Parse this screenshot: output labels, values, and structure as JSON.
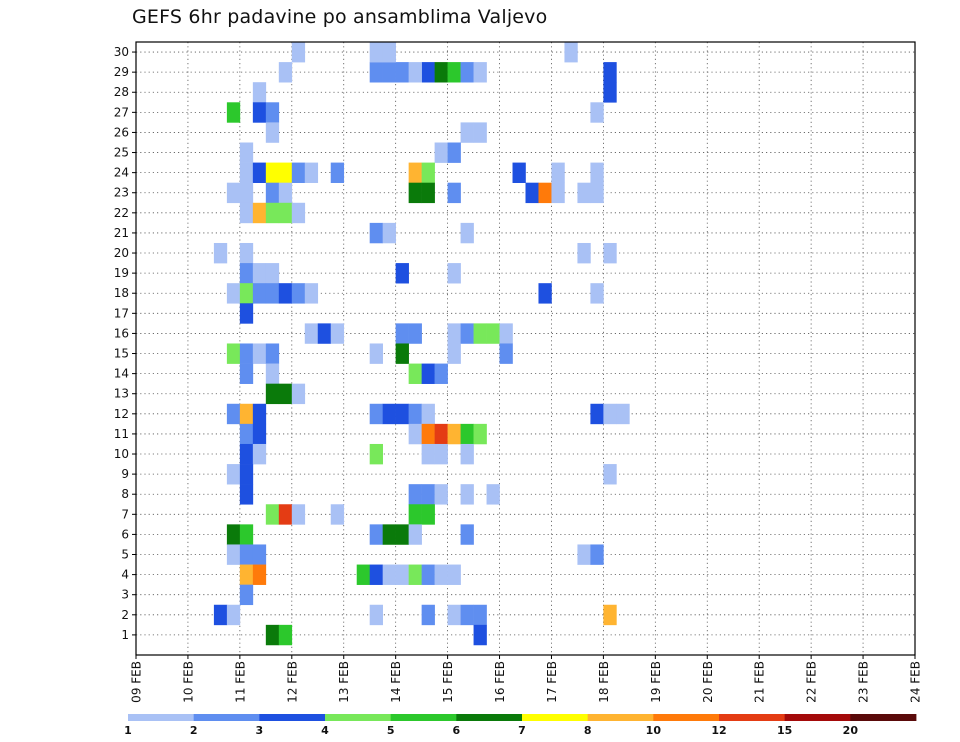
{
  "chart_data": {
    "type": "heatmap",
    "title": "GEFS 6hr padavine po ansamblima Valjevo",
    "x_tick_labels": [
      "09 FEB",
      "10 FEB",
      "11 FEB",
      "12 FEB",
      "13 FEB",
      "14 FEB",
      "15 FEB",
      "16 FEB",
      "17 FEB",
      "18 FEB",
      "19 FEB",
      "20 FEB",
      "21 FEB",
      "22 FEB",
      "23 FEB",
      "24 FEB"
    ],
    "x_range_days": [
      0,
      15
    ],
    "y_range_members": [
      0,
      30
    ],
    "y_ticks": [
      1,
      2,
      3,
      4,
      5,
      6,
      7,
      8,
      9,
      10,
      11,
      12,
      13,
      14,
      15,
      16,
      17,
      18,
      19,
      20,
      21,
      22,
      23,
      24,
      25,
      26,
      27,
      28,
      29,
      30
    ],
    "grid": true,
    "colorbar": {
      "orientation": "horizontal",
      "position": "bottom",
      "labels": [
        "1",
        "2",
        "3",
        "4",
        "5",
        "6",
        "7",
        "8",
        "10",
        "12",
        "15",
        "20"
      ],
      "colors": [
        "#a9c1f5",
        "#5f8ef0",
        "#1e50e0",
        "#78e85a",
        "#2cc82c",
        "#0a7a0a",
        "#ffff00",
        "#ffb431",
        "#ff7a0a",
        "#e43c14",
        "#a40a0a",
        "#5a0a0a"
      ]
    },
    "cells": [
      [
        12,
        30,
        1
      ],
      [
        18,
        29,
        2
      ],
      [
        19,
        29,
        2
      ],
      [
        20,
        29,
        2
      ],
      [
        11,
        29,
        1
      ],
      [
        18,
        30,
        1
      ],
      [
        19,
        30,
        1
      ],
      [
        22,
        29,
        3
      ],
      [
        23,
        29,
        6
      ],
      [
        24,
        29,
        5
      ],
      [
        25,
        29,
        2
      ],
      [
        26,
        29,
        1
      ],
      [
        21,
        29,
        1
      ],
      [
        33,
        30,
        1
      ],
      [
        36,
        29,
        3
      ],
      [
        36,
        28,
        3
      ],
      [
        9,
        28,
        1
      ],
      [
        7,
        27,
        5
      ],
      [
        9,
        27,
        3
      ],
      [
        10,
        27,
        2
      ],
      [
        35,
        27,
        1
      ],
      [
        10,
        26,
        1
      ],
      [
        25,
        26,
        1
      ],
      [
        26,
        26,
        1
      ],
      [
        8,
        25,
        1
      ],
      [
        23,
        25,
        1
      ],
      [
        24,
        25,
        2
      ],
      [
        8,
        24,
        1
      ],
      [
        9,
        24,
        3
      ],
      [
        10,
        24,
        7
      ],
      [
        11,
        24,
        7
      ],
      [
        12,
        24,
        2
      ],
      [
        13,
        24,
        1
      ],
      [
        15,
        24,
        2
      ],
      [
        21,
        24,
        8
      ],
      [
        22,
        24,
        4
      ],
      [
        29,
        24,
        3
      ],
      [
        32,
        24,
        1
      ],
      [
        35,
        24,
        1
      ],
      [
        7,
        23,
        1
      ],
      [
        8,
        23,
        1
      ],
      [
        10,
        23,
        2
      ],
      [
        11,
        23,
        1
      ],
      [
        21,
        23,
        6
      ],
      [
        22,
        23,
        6
      ],
      [
        24,
        23,
        2
      ],
      [
        30,
        23,
        3
      ],
      [
        31,
        23,
        9
      ],
      [
        32,
        23,
        1
      ],
      [
        34,
        23,
        1
      ],
      [
        35,
        23,
        1
      ],
      [
        8,
        22,
        1
      ],
      [
        9,
        22,
        8
      ],
      [
        10,
        22,
        4
      ],
      [
        11,
        22,
        4
      ],
      [
        12,
        22,
        1
      ],
      [
        18,
        21,
        2
      ],
      [
        19,
        21,
        1
      ],
      [
        25,
        21,
        1
      ],
      [
        6,
        20,
        1
      ],
      [
        8,
        20,
        1
      ],
      [
        34,
        20,
        1
      ],
      [
        36,
        20,
        1
      ],
      [
        8,
        19,
        2
      ],
      [
        9,
        19,
        1
      ],
      [
        10,
        19,
        1
      ],
      [
        20,
        19,
        3
      ],
      [
        24,
        19,
        1
      ],
      [
        7,
        18,
        1
      ],
      [
        8,
        18,
        4
      ],
      [
        9,
        18,
        2
      ],
      [
        10,
        18,
        2
      ],
      [
        11,
        18,
        3
      ],
      [
        12,
        18,
        2
      ],
      [
        13,
        18,
        1
      ],
      [
        31,
        18,
        3
      ],
      [
        35,
        18,
        1
      ],
      [
        8,
        17,
        3
      ],
      [
        13,
        16,
        1
      ],
      [
        14,
        16,
        3
      ],
      [
        15,
        16,
        1
      ],
      [
        20,
        16,
        2
      ],
      [
        21,
        16,
        2
      ],
      [
        24,
        16,
        1
      ],
      [
        25,
        16,
        2
      ],
      [
        26,
        16,
        4
      ],
      [
        27,
        16,
        4
      ],
      [
        28,
        16,
        1
      ],
      [
        7,
        15,
        4
      ],
      [
        8,
        15,
        2
      ],
      [
        9,
        15,
        1
      ],
      [
        10,
        15,
        2
      ],
      [
        18,
        15,
        1
      ],
      [
        20,
        15,
        6
      ],
      [
        24,
        15,
        1
      ],
      [
        28,
        15,
        2
      ],
      [
        8,
        14,
        2
      ],
      [
        10,
        14,
        1
      ],
      [
        21,
        14,
        4
      ],
      [
        22,
        14,
        3
      ],
      [
        23,
        14,
        2
      ],
      [
        10,
        13,
        6
      ],
      [
        11,
        13,
        6
      ],
      [
        12,
        13,
        1
      ],
      [
        7,
        12,
        2
      ],
      [
        8,
        12,
        8
      ],
      [
        9,
        12,
        3
      ],
      [
        18,
        12,
        2
      ],
      [
        19,
        12,
        3
      ],
      [
        20,
        12,
        3
      ],
      [
        21,
        12,
        2
      ],
      [
        22,
        12,
        1
      ],
      [
        35,
        12,
        3
      ],
      [
        36,
        12,
        1
      ],
      [
        37,
        12,
        1
      ],
      [
        8,
        11,
        2
      ],
      [
        9,
        11,
        3
      ],
      [
        21,
        11,
        1
      ],
      [
        22,
        11,
        9
      ],
      [
        23,
        11,
        10
      ],
      [
        24,
        11,
        8
      ],
      [
        25,
        11,
        5
      ],
      [
        26,
        11,
        4
      ],
      [
        8,
        10,
        3
      ],
      [
        9,
        10,
        1
      ],
      [
        18,
        10,
        4
      ],
      [
        22,
        10,
        1
      ],
      [
        23,
        10,
        1
      ],
      [
        25,
        10,
        1
      ],
      [
        7,
        9,
        1
      ],
      [
        8,
        9,
        3
      ],
      [
        36,
        9,
        1
      ],
      [
        8,
        8,
        3
      ],
      [
        21,
        8,
        2
      ],
      [
        22,
        8,
        2
      ],
      [
        23,
        8,
        1
      ],
      [
        25,
        8,
        1
      ],
      [
        27,
        8,
        1
      ],
      [
        10,
        7,
        4
      ],
      [
        11,
        7,
        10
      ],
      [
        12,
        7,
        1
      ],
      [
        15,
        7,
        1
      ],
      [
        21,
        7,
        5
      ],
      [
        22,
        7,
        5
      ],
      [
        7,
        6,
        6
      ],
      [
        8,
        6,
        5
      ],
      [
        18,
        6,
        2
      ],
      [
        19,
        6,
        6
      ],
      [
        20,
        6,
        6
      ],
      [
        21,
        6,
        1
      ],
      [
        25,
        6,
        2
      ],
      [
        7,
        5,
        1
      ],
      [
        8,
        5,
        2
      ],
      [
        9,
        5,
        2
      ],
      [
        34,
        5,
        1
      ],
      [
        35,
        5,
        2
      ],
      [
        8,
        4,
        8
      ],
      [
        9,
        4,
        9
      ],
      [
        17,
        4,
        5
      ],
      [
        18,
        4,
        3
      ],
      [
        19,
        4,
        1
      ],
      [
        20,
        4,
        1
      ],
      [
        21,
        4,
        4
      ],
      [
        22,
        4,
        2
      ],
      [
        23,
        4,
        1
      ],
      [
        24,
        4,
        1
      ],
      [
        8,
        3,
        2
      ],
      [
        6,
        2,
        3
      ],
      [
        7,
        2,
        1
      ],
      [
        18,
        2,
        1
      ],
      [
        22,
        2,
        2
      ],
      [
        24,
        2,
        1
      ],
      [
        25,
        2,
        2
      ],
      [
        26,
        2,
        2
      ],
      [
        36,
        2,
        8
      ],
      [
        10,
        1,
        6
      ],
      [
        11,
        1,
        5
      ],
      [
        26,
        1,
        3
      ]
    ]
  }
}
